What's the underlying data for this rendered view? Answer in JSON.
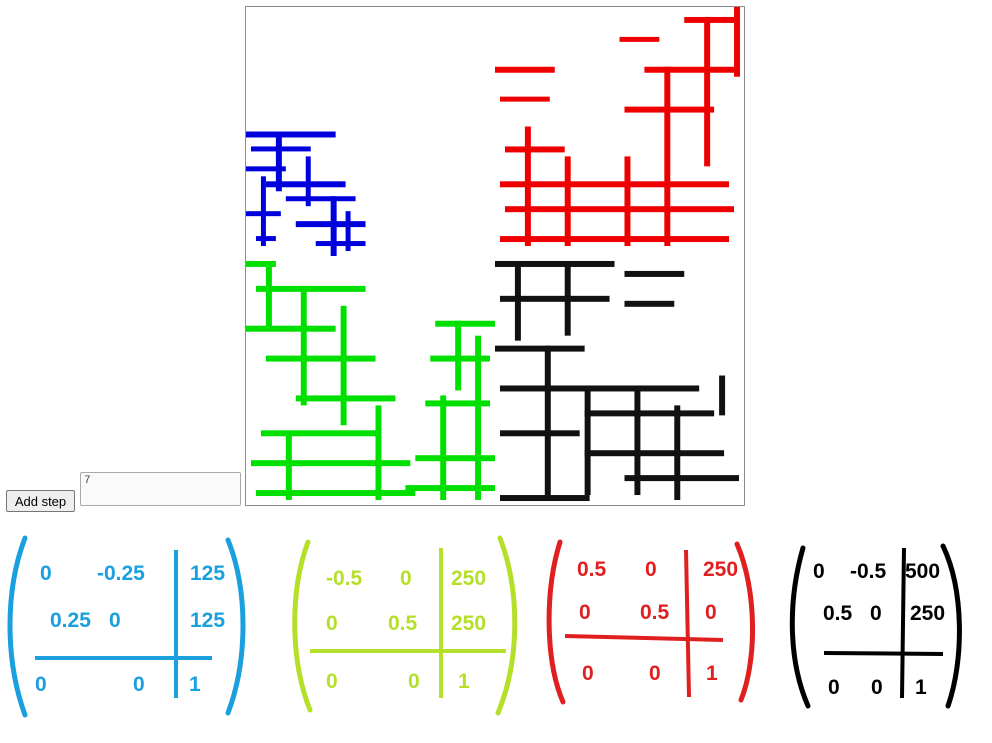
{
  "controls": {
    "add_step_label": "Add step",
    "steps_value": "7"
  },
  "colors": {
    "blue": "#0000dd",
    "green": "#00e000",
    "red": "#ee0000",
    "black": "#111111",
    "annotation_blue": "#1a9fdf",
    "annotation_green": "#b5e02a",
    "annotation_red": "#e02020",
    "annotation_black": "#000000"
  },
  "matrices": [
    {
      "name": "blue-transform",
      "color": "#1a9fdf",
      "row1": [
        "0",
        "-0.25",
        "125"
      ],
      "row2": [
        "0.25",
        "0",
        "125"
      ],
      "row3": [
        "0",
        "0",
        "1"
      ]
    },
    {
      "name": "green-transform",
      "color": "#b5e02a",
      "row1": [
        "-0.5",
        "0",
        "250"
      ],
      "row2": [
        "0",
        "0.5",
        "250"
      ],
      "row3": [
        "0",
        "0",
        "1"
      ]
    },
    {
      "name": "red-transform",
      "color": "#e02020",
      "row1": [
        "0.5",
        "0",
        "250"
      ],
      "row2": [
        "0",
        "0.5",
        "0"
      ],
      "row3": [
        "0",
        "0",
        "1"
      ]
    },
    {
      "name": "black-transform",
      "color": "#000000",
      "row1": [
        "0",
        "-0.5",
        "500"
      ],
      "row2": [
        "0.5",
        "0",
        "250"
      ],
      "row3": [
        "0",
        "0",
        "1"
      ]
    }
  ]
}
